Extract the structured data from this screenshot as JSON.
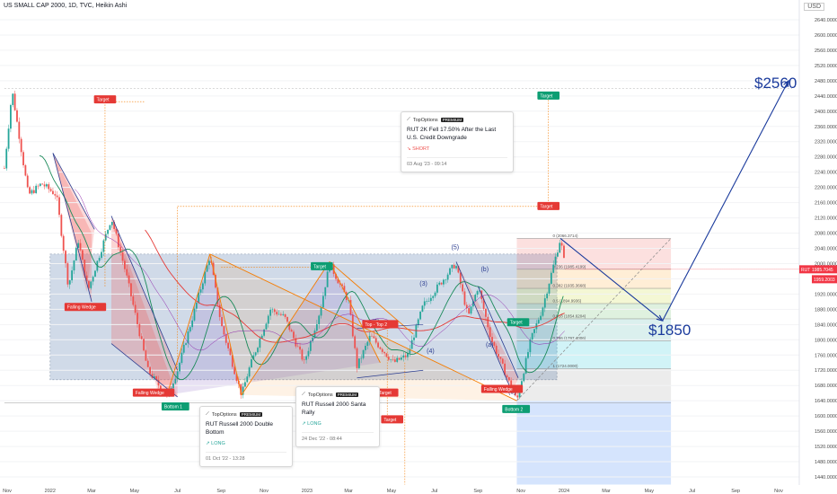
{
  "header": {
    "title": "US SMALL CAP 2000, 1D, TVC, Heikin Ashi",
    "currency": "USD"
  },
  "colors": {
    "up": "#26a69a",
    "down": "#ef5350",
    "target_red": "#e53935",
    "target_green": "#0d9e73",
    "blue_arrow": "#1a3a9c",
    "orange": "#f57c00"
  },
  "chart_data": {
    "type": "candlestick",
    "title": "US SMALL CAP 2000, 1D, TVC, Heikin Ashi",
    "y_ticks": [
      2640,
      2600,
      2560,
      2520,
      2480,
      2440,
      2400,
      2360,
      2320,
      2280,
      2240,
      2200,
      2160,
      2120,
      2080,
      2040,
      2000,
      1960,
      1920,
      1880,
      1840,
      1800,
      1760,
      1720,
      1680,
      1640,
      1600,
      1560,
      1520,
      1480,
      1440
    ],
    "y_tick_labels": [
      "2640.0000",
      "2600.0000",
      "2560.0000",
      "2520.0000",
      "2480.0000",
      "2440.0000",
      "2400.0000",
      "2360.0000",
      "2320.0000",
      "2280.0000",
      "2240.0000",
      "2200.0000",
      "2160.0000",
      "2120.0000",
      "2080.0000",
      "2040.0000",
      "2000.0000",
      "1960.0000",
      "1920.0000",
      "1880.0000",
      "1840.0000",
      "1800.0000",
      "1760.0000",
      "1720.0000",
      "1680.0000",
      "1640.0000",
      "1600.0000",
      "1560.0000",
      "1520.0000",
      "1480.0000",
      "1440.0000"
    ],
    "ylim": [
      1420,
      2660
    ],
    "x_ticks": [
      "Nov",
      "2022",
      "Mar",
      "May",
      "Jul",
      "Sep",
      "Nov",
      "2023",
      "Mar",
      "May",
      "Jul",
      "Sep",
      "Nov",
      "2024",
      "Mar",
      "May",
      "Jul",
      "Sep",
      "Nov"
    ],
    "price_path": [
      {
        "date": "2021-10-28",
        "price": 2250
      },
      {
        "date": "2021-11-08",
        "price": 2455
      },
      {
        "date": "2021-12-01",
        "price": 2180
      },
      {
        "date": "2021-12-20",
        "price": 2210
      },
      {
        "date": "2022-01-10",
        "price": 2180
      },
      {
        "date": "2022-01-27",
        "price": 1940
      },
      {
        "date": "2022-02-10",
        "price": 2060
      },
      {
        "date": "2022-02-24",
        "price": 1930
      },
      {
        "date": "2022-03-29",
        "price": 2120
      },
      {
        "date": "2022-04-18",
        "price": 1980
      },
      {
        "date": "2022-05-20",
        "price": 1720
      },
      {
        "date": "2022-06-16",
        "price": 1650
      },
      {
        "date": "2022-07-01",
        "price": 1720
      },
      {
        "date": "2022-08-16",
        "price": 2020
      },
      {
        "date": "2022-09-01",
        "price": 1840
      },
      {
        "date": "2022-09-30",
        "price": 1655
      },
      {
        "date": "2022-10-10",
        "price": 1720
      },
      {
        "date": "2022-11-10",
        "price": 1880
      },
      {
        "date": "2022-11-30",
        "price": 1860
      },
      {
        "date": "2022-12-28",
        "price": 1740
      },
      {
        "date": "2023-01-20",
        "price": 1880
      },
      {
        "date": "2023-02-02",
        "price": 2000
      },
      {
        "date": "2023-03-01",
        "price": 1900
      },
      {
        "date": "2023-03-13",
        "price": 1730
      },
      {
        "date": "2023-04-01",
        "price": 1810
      },
      {
        "date": "2023-05-04",
        "price": 1740
      },
      {
        "date": "2023-05-24",
        "price": 1760
      },
      {
        "date": "2023-06-15",
        "price": 1890
      },
      {
        "date": "2023-07-31",
        "price": 2000
      },
      {
        "date": "2023-08-18",
        "price": 1860
      },
      {
        "date": "2023-09-01",
        "price": 1940
      },
      {
        "date": "2023-09-20",
        "price": 1800
      },
      {
        "date": "2023-10-26",
        "price": 1640
      },
      {
        "date": "2023-11-15",
        "price": 1800
      },
      {
        "date": "2023-12-01",
        "price": 1880
      },
      {
        "date": "2023-12-27",
        "price": 2066
      },
      {
        "date": "2024-01-03",
        "price": 1985
      }
    ],
    "current_price": {
      "label": "RUT",
      "value": "1985.7045"
    },
    "secondary_price": {
      "value": "1959.2003"
    },
    "fib_levels": [
      {
        "label": "0 (2066.3714)",
        "price": 2066
      },
      {
        "label": "0.236 (1985.4199)",
        "price": 1985
      },
      {
        "label": "0.382 (1935.3668)",
        "price": 1935
      },
      {
        "label": "0.5 (1894.9936)",
        "price": 1895
      },
      {
        "label": "0.618 (1854.6204)",
        "price": 1855
      },
      {
        "label": "0.786 (1797.4006)",
        "price": 1797
      },
      {
        "label": "1 (1724.0000)",
        "price": 1724
      }
    ],
    "targets": [
      {
        "label": "Target",
        "price": 2430,
        "date": "2022-03-20",
        "kind": "red"
      },
      {
        "label": "Target",
        "price": 2440,
        "date": "2023-12-10",
        "kind": "green"
      },
      {
        "label": "Target",
        "price": 2150,
        "date": "2023-12-10",
        "kind": "red"
      },
      {
        "label": "Target",
        "price": 1992,
        "date": "2023-01-22",
        "kind": "green"
      },
      {
        "label": "Target",
        "price": 1660,
        "date": "2023-04-25",
        "kind": "red"
      },
      {
        "label": "Target",
        "price": 1590,
        "date": "2023-05-02",
        "kind": "red"
      }
    ],
    "pattern_labels": [
      {
        "text": "Falling Wedge",
        "date": "2022-02-20",
        "price": 1885,
        "kind": "red"
      },
      {
        "text": "Falling Wedge",
        "date": "2022-05-28",
        "price": 1660,
        "kind": "red"
      },
      {
        "text": "Bottom 1",
        "date": "2022-06-28",
        "price": 1624,
        "kind": "green"
      },
      {
        "text": "Top - Top 2",
        "date": "2023-04-15",
        "price": 1840,
        "kind": "red"
      },
      {
        "text": "Falling Wedge",
        "date": "2023-10-05",
        "price": 1670,
        "kind": "red"
      },
      {
        "text": "Bottom 2",
        "date": "2023-10-25",
        "price": 1617,
        "kind": "green"
      },
      {
        "text": "Target",
        "date": "2023-10-28",
        "price": 1845,
        "kind": "green"
      }
    ],
    "wave_labels": [
      "(5)",
      "(3)",
      "(4)",
      "(5)",
      "(a)",
      "(b)",
      "(c)"
    ],
    "forecast": [
      {
        "date": "2023-12-27",
        "price": 2066
      },
      {
        "date": "2024-05-20",
        "price": 1850
      },
      {
        "date": "2024-11-15",
        "price": 2480
      }
    ],
    "annotations": [
      "$2560 EO",
      "$1850"
    ]
  },
  "ideas": [
    {
      "brand": "TopOptions",
      "badge": "PREMIUM",
      "title": "RUT 2K Fell 17.50% After the Last U.S. Credit Downgrade",
      "side": "SHORT",
      "date": "03 Aug '23 - 09:14"
    },
    {
      "brand": "TopOptions",
      "badge": "PREMIUM",
      "title": "RUT Russell 2000 Double Bottom",
      "side": "LONG",
      "date": "01 Oct '22 - 13:28"
    },
    {
      "brand": "TopOptions",
      "badge": "PREMIUM",
      "title": "RUT Russell 2000 Santa Rally",
      "side": "LONG",
      "date": "24 Dec '22 - 08:44"
    }
  ]
}
